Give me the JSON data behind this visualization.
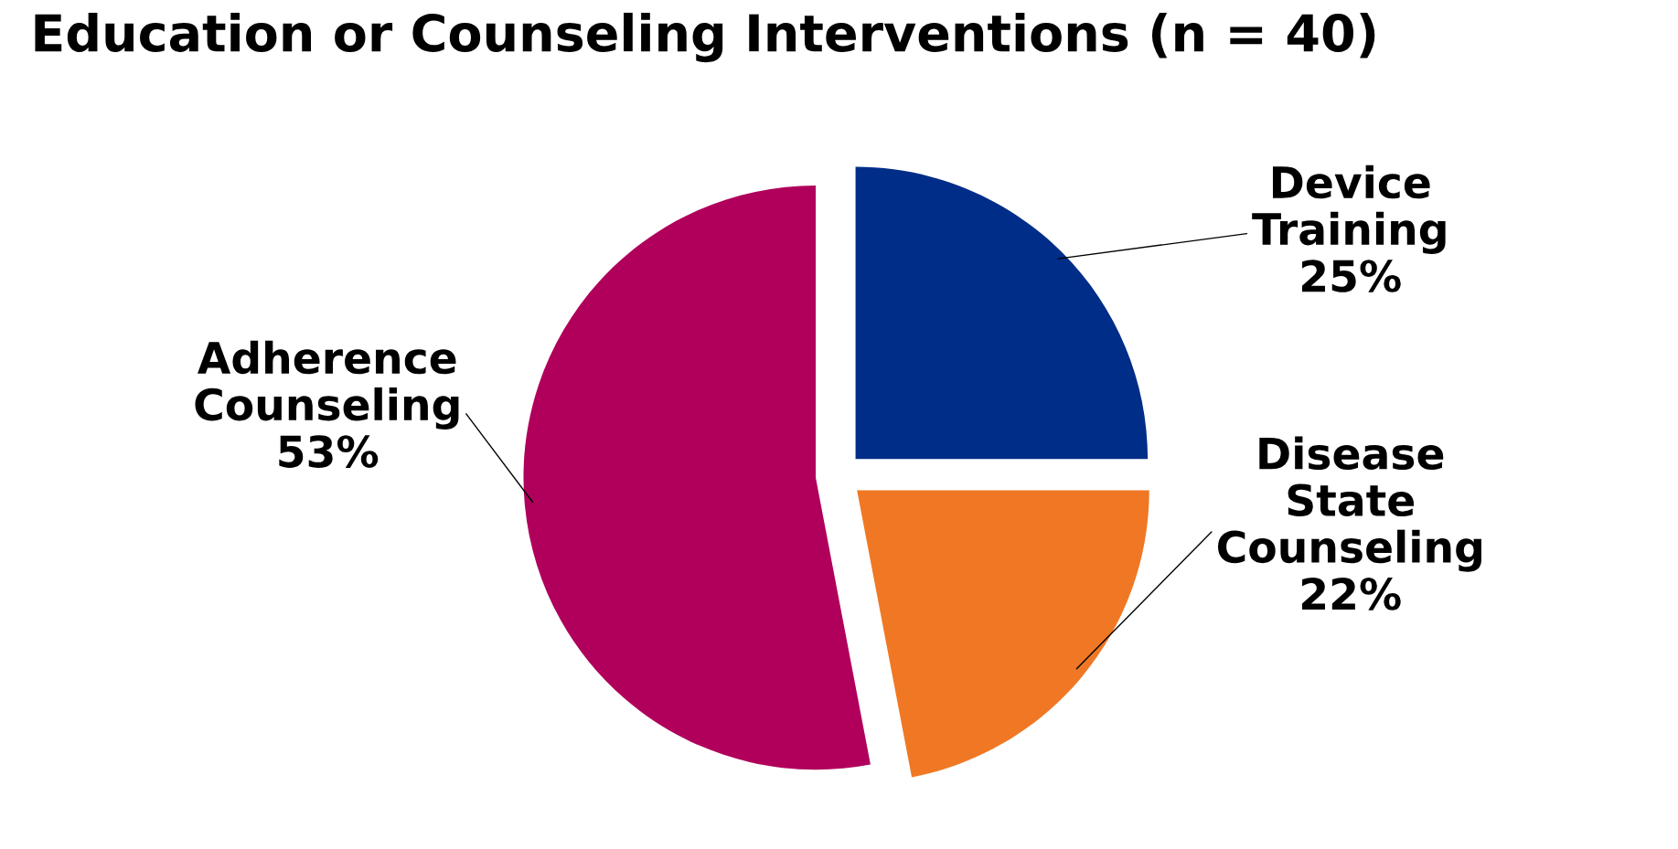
{
  "chart_data": {
    "type": "pie",
    "title": "Education or Counseling Interventions (n = 40)",
    "categories": [
      "Device Training",
      "Disease State Counseling",
      "Adherence Counseling"
    ],
    "values": [
      25,
      22,
      53
    ],
    "colors": [
      "#002d87",
      "#f07824",
      "#b0005b"
    ],
    "value_labels": [
      "25%",
      "22%",
      "53%"
    ]
  }
}
